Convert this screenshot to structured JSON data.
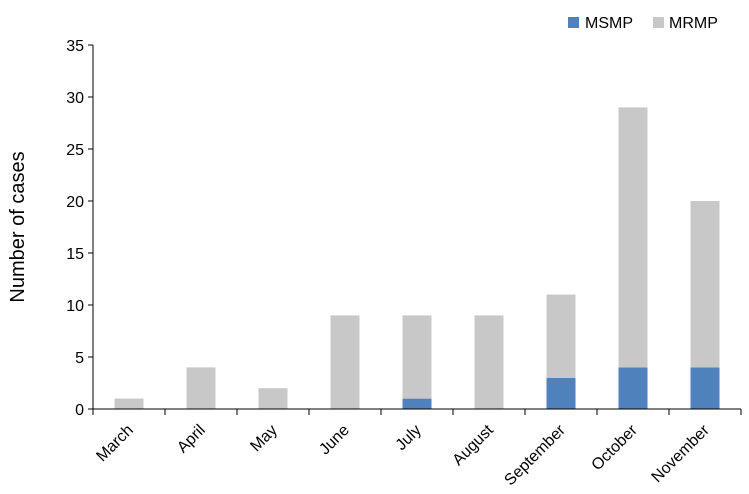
{
  "chart_data": {
    "type": "bar",
    "stacked": true,
    "categories": [
      "March",
      "April",
      "May",
      "June",
      "July",
      "August",
      "September",
      "October",
      "November"
    ],
    "series": [
      {
        "name": "MSMP",
        "values": [
          0,
          0,
          0,
          0,
          1,
          0,
          3,
          4,
          4
        ],
        "color": "#4f81bd"
      },
      {
        "name": "MRMP",
        "values": [
          1,
          4,
          2,
          9,
          8,
          9,
          8,
          25,
          16
        ],
        "color": "#c8c8c8"
      }
    ],
    "title": "",
    "xlabel": "",
    "ylabel": "Number of cases",
    "ylim": [
      0,
      35
    ],
    "yticks": [
      "0",
      "5",
      "10",
      "15",
      "20",
      "25",
      "30",
      "35"
    ],
    "grid": false,
    "legend_position": "top-right"
  }
}
